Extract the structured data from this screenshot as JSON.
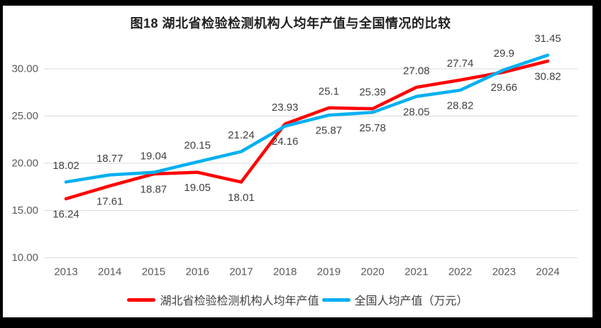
{
  "chart_data": {
    "type": "line",
    "title": "图18 湖北省检验检测机构人均年产值与全国情况的比较",
    "categories": [
      "2013",
      "2014",
      "2015",
      "2016",
      "2017",
      "2018",
      "2019",
      "2020",
      "2021",
      "2022",
      "2023",
      "2024"
    ],
    "series": [
      {
        "id": "hubei",
        "name": "湖北省检验检测机构人均年产值",
        "color": "#ff0000",
        "label_position": "below",
        "values": [
          16.24,
          17.61,
          18.87,
          19.05,
          18.01,
          24.16,
          25.87,
          25.78,
          28.05,
          28.82,
          29.66,
          30.82
        ]
      },
      {
        "id": "national",
        "name": "全国人均产值（万元）",
        "color": "#00b0f0",
        "label_position": "above",
        "values": [
          18.02,
          18.77,
          19.04,
          20.15,
          21.24,
          23.93,
          25.1,
          25.39,
          27.08,
          27.74,
          29.9,
          31.45
        ]
      }
    ],
    "xlabel": "",
    "ylabel": "",
    "ylim": [
      10,
      32.5
    ],
    "yaxis": {
      "tick_values": [
        10,
        15,
        20,
        25,
        30
      ],
      "tick_labels": [
        "10.00",
        "15.00",
        "20.00",
        "25.00",
        "30.00"
      ]
    },
    "grid": true,
    "legend_position": "bottom",
    "style": {
      "grid_color": "#d9d9d9",
      "axis_text_color": "#595959",
      "data_label_color": "#404040",
      "title_color": "#1f1f1f",
      "background": "#ffffff",
      "frame_color": "#000000"
    }
  }
}
